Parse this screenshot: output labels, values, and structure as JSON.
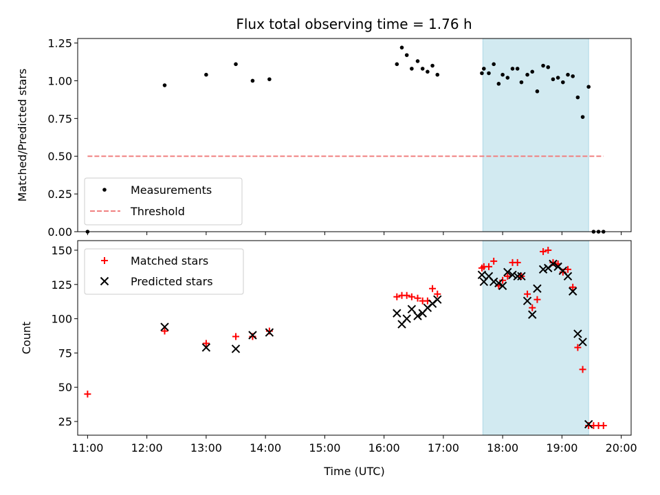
{
  "title": "Flux total observing time = 1.76 h",
  "colors": {
    "measurement": "#000000",
    "threshold": "#f08080",
    "matched": "#ff0000",
    "predicted": "#000000",
    "highlight": "#add8e6"
  },
  "chart_data": [
    {
      "type": "scatter",
      "title": "Flux total observing time = 1.76 h",
      "ylabel": "Matched/Predicted stars",
      "xlabel": "",
      "xlim": [
        "10:50",
        "20:10"
      ],
      "ylim": [
        0,
        1.28
      ],
      "yticks": [
        "0.00",
        "0.25",
        "0.50",
        "0.75",
        "1.00",
        "1.25"
      ],
      "grid": false,
      "legend": "lower-left",
      "highlight_span": [
        "17:40",
        "19:27"
      ],
      "series": [
        {
          "name": "Measurements",
          "marker": "dot",
          "points": [
            [
              "11:00",
              0.0
            ],
            [
              "12:18",
              0.97
            ],
            [
              "13:00",
              1.04
            ],
            [
              "13:30",
              1.11
            ],
            [
              "13:47",
              1.0
            ],
            [
              "14:04",
              1.01
            ],
            [
              "16:13",
              1.11
            ],
            [
              "16:18",
              1.22
            ],
            [
              "16:23",
              1.17
            ],
            [
              "16:28",
              1.08
            ],
            [
              "16:34",
              1.13
            ],
            [
              "16:39",
              1.08
            ],
            [
              "16:44",
              1.06
            ],
            [
              "16:49",
              1.1
            ],
            [
              "16:54",
              1.04
            ],
            [
              "17:39",
              1.05
            ],
            [
              "17:41",
              1.08
            ],
            [
              "17:46",
              1.05
            ],
            [
              "17:51",
              1.11
            ],
            [
              "17:56",
              0.98
            ],
            [
              "18:00",
              1.04
            ],
            [
              "18:05",
              1.02
            ],
            [
              "18:10",
              1.08
            ],
            [
              "18:15",
              1.08
            ],
            [
              "18:19",
              0.99
            ],
            [
              "18:25",
              1.04
            ],
            [
              "18:30",
              1.06
            ],
            [
              "18:35",
              0.93
            ],
            [
              "18:41",
              1.1
            ],
            [
              "18:46",
              1.09
            ],
            [
              "18:51",
              1.01
            ],
            [
              "18:56",
              1.02
            ],
            [
              "19:01",
              0.99
            ],
            [
              "19:06",
              1.04
            ],
            [
              "19:11",
              1.03
            ],
            [
              "19:16",
              0.89
            ],
            [
              "19:21",
              0.76
            ],
            [
              "19:27",
              0.96
            ],
            [
              "19:32",
              0.0
            ],
            [
              "19:37",
              0.0
            ],
            [
              "19:42",
              0.0
            ]
          ]
        },
        {
          "name": "Threshold",
          "marker": "dashed-line",
          "points": [
            [
              "11:00",
              0.5
            ],
            [
              "19:42",
              0.5
            ]
          ]
        }
      ]
    },
    {
      "type": "scatter",
      "ylabel": "Count",
      "xlabel": "Time (UTC)",
      "xlim": [
        "10:50",
        "20:10"
      ],
      "ylim": [
        15,
        157
      ],
      "yticks": [
        "25",
        "50",
        "75",
        "100",
        "125",
        "150"
      ],
      "xticks": [
        "11:00",
        "12:00",
        "13:00",
        "14:00",
        "15:00",
        "16:00",
        "17:00",
        "18:00",
        "19:00",
        "20:00"
      ],
      "grid": false,
      "legend": "upper-left",
      "highlight_span": [
        "17:40",
        "19:27"
      ],
      "series": [
        {
          "name": "Matched stars",
          "marker": "plus",
          "points": [
            [
              "11:00",
              45
            ],
            [
              "12:18",
              91
            ],
            [
              "13:00",
              82
            ],
            [
              "13:30",
              87
            ],
            [
              "13:47",
              87
            ],
            [
              "14:04",
              91
            ],
            [
              "16:13",
              116
            ],
            [
              "16:18",
              117
            ],
            [
              "16:23",
              117
            ],
            [
              "16:28",
              116
            ],
            [
              "16:34",
              115
            ],
            [
              "16:39",
              113
            ],
            [
              "16:44",
              113
            ],
            [
              "16:49",
              122
            ],
            [
              "16:54",
              118
            ],
            [
              "17:39",
              137
            ],
            [
              "17:41",
              138
            ],
            [
              "17:46",
              138
            ],
            [
              "17:51",
              142
            ],
            [
              "17:56",
              124
            ],
            [
              "18:00",
              128
            ],
            [
              "18:05",
              131
            ],
            [
              "18:10",
              141
            ],
            [
              "18:15",
              141
            ],
            [
              "18:19",
              131
            ],
            [
              "18:25",
              118
            ],
            [
              "18:30",
              108
            ],
            [
              "18:35",
              114
            ],
            [
              "18:41",
              149
            ],
            [
              "18:46",
              150
            ],
            [
              "18:51",
              141
            ],
            [
              "18:56",
              140
            ],
            [
              "19:01",
              134
            ],
            [
              "19:06",
              136
            ],
            [
              "19:11",
              123
            ],
            [
              "19:16",
              79
            ],
            [
              "19:21",
              63
            ],
            [
              "19:27",
              22
            ],
            [
              "19:32",
              22
            ],
            [
              "19:37",
              22
            ],
            [
              "19:42",
              22
            ]
          ]
        },
        {
          "name": "Predicted stars",
          "marker": "x",
          "points": [
            [
              "12:18",
              94
            ],
            [
              "13:00",
              79
            ],
            [
              "13:30",
              78
            ],
            [
              "13:47",
              88
            ],
            [
              "14:04",
              90
            ],
            [
              "16:13",
              104
            ],
            [
              "16:18",
              96
            ],
            [
              "16:23",
              100
            ],
            [
              "16:28",
              107
            ],
            [
              "16:34",
              102
            ],
            [
              "16:39",
              104
            ],
            [
              "16:44",
              108
            ],
            [
              "16:49",
              111
            ],
            [
              "16:54",
              114
            ],
            [
              "17:39",
              132
            ],
            [
              "17:41",
              127
            ],
            [
              "17:46",
              131
            ],
            [
              "17:51",
              127
            ],
            [
              "17:56",
              126
            ],
            [
              "18:00",
              124
            ],
            [
              "18:05",
              134
            ],
            [
              "18:10",
              132
            ],
            [
              "18:15",
              131
            ],
            [
              "18:19",
              131
            ],
            [
              "18:25",
              113
            ],
            [
              "18:30",
              103
            ],
            [
              "18:35",
              122
            ],
            [
              "18:41",
              136
            ],
            [
              "18:46",
              137
            ],
            [
              "18:51",
              140
            ],
            [
              "18:56",
              138
            ],
            [
              "19:01",
              135
            ],
            [
              "19:06",
              131
            ],
            [
              "19:11",
              120
            ],
            [
              "19:16",
              89
            ],
            [
              "19:21",
              83
            ],
            [
              "19:27",
              23
            ]
          ]
        }
      ]
    }
  ]
}
